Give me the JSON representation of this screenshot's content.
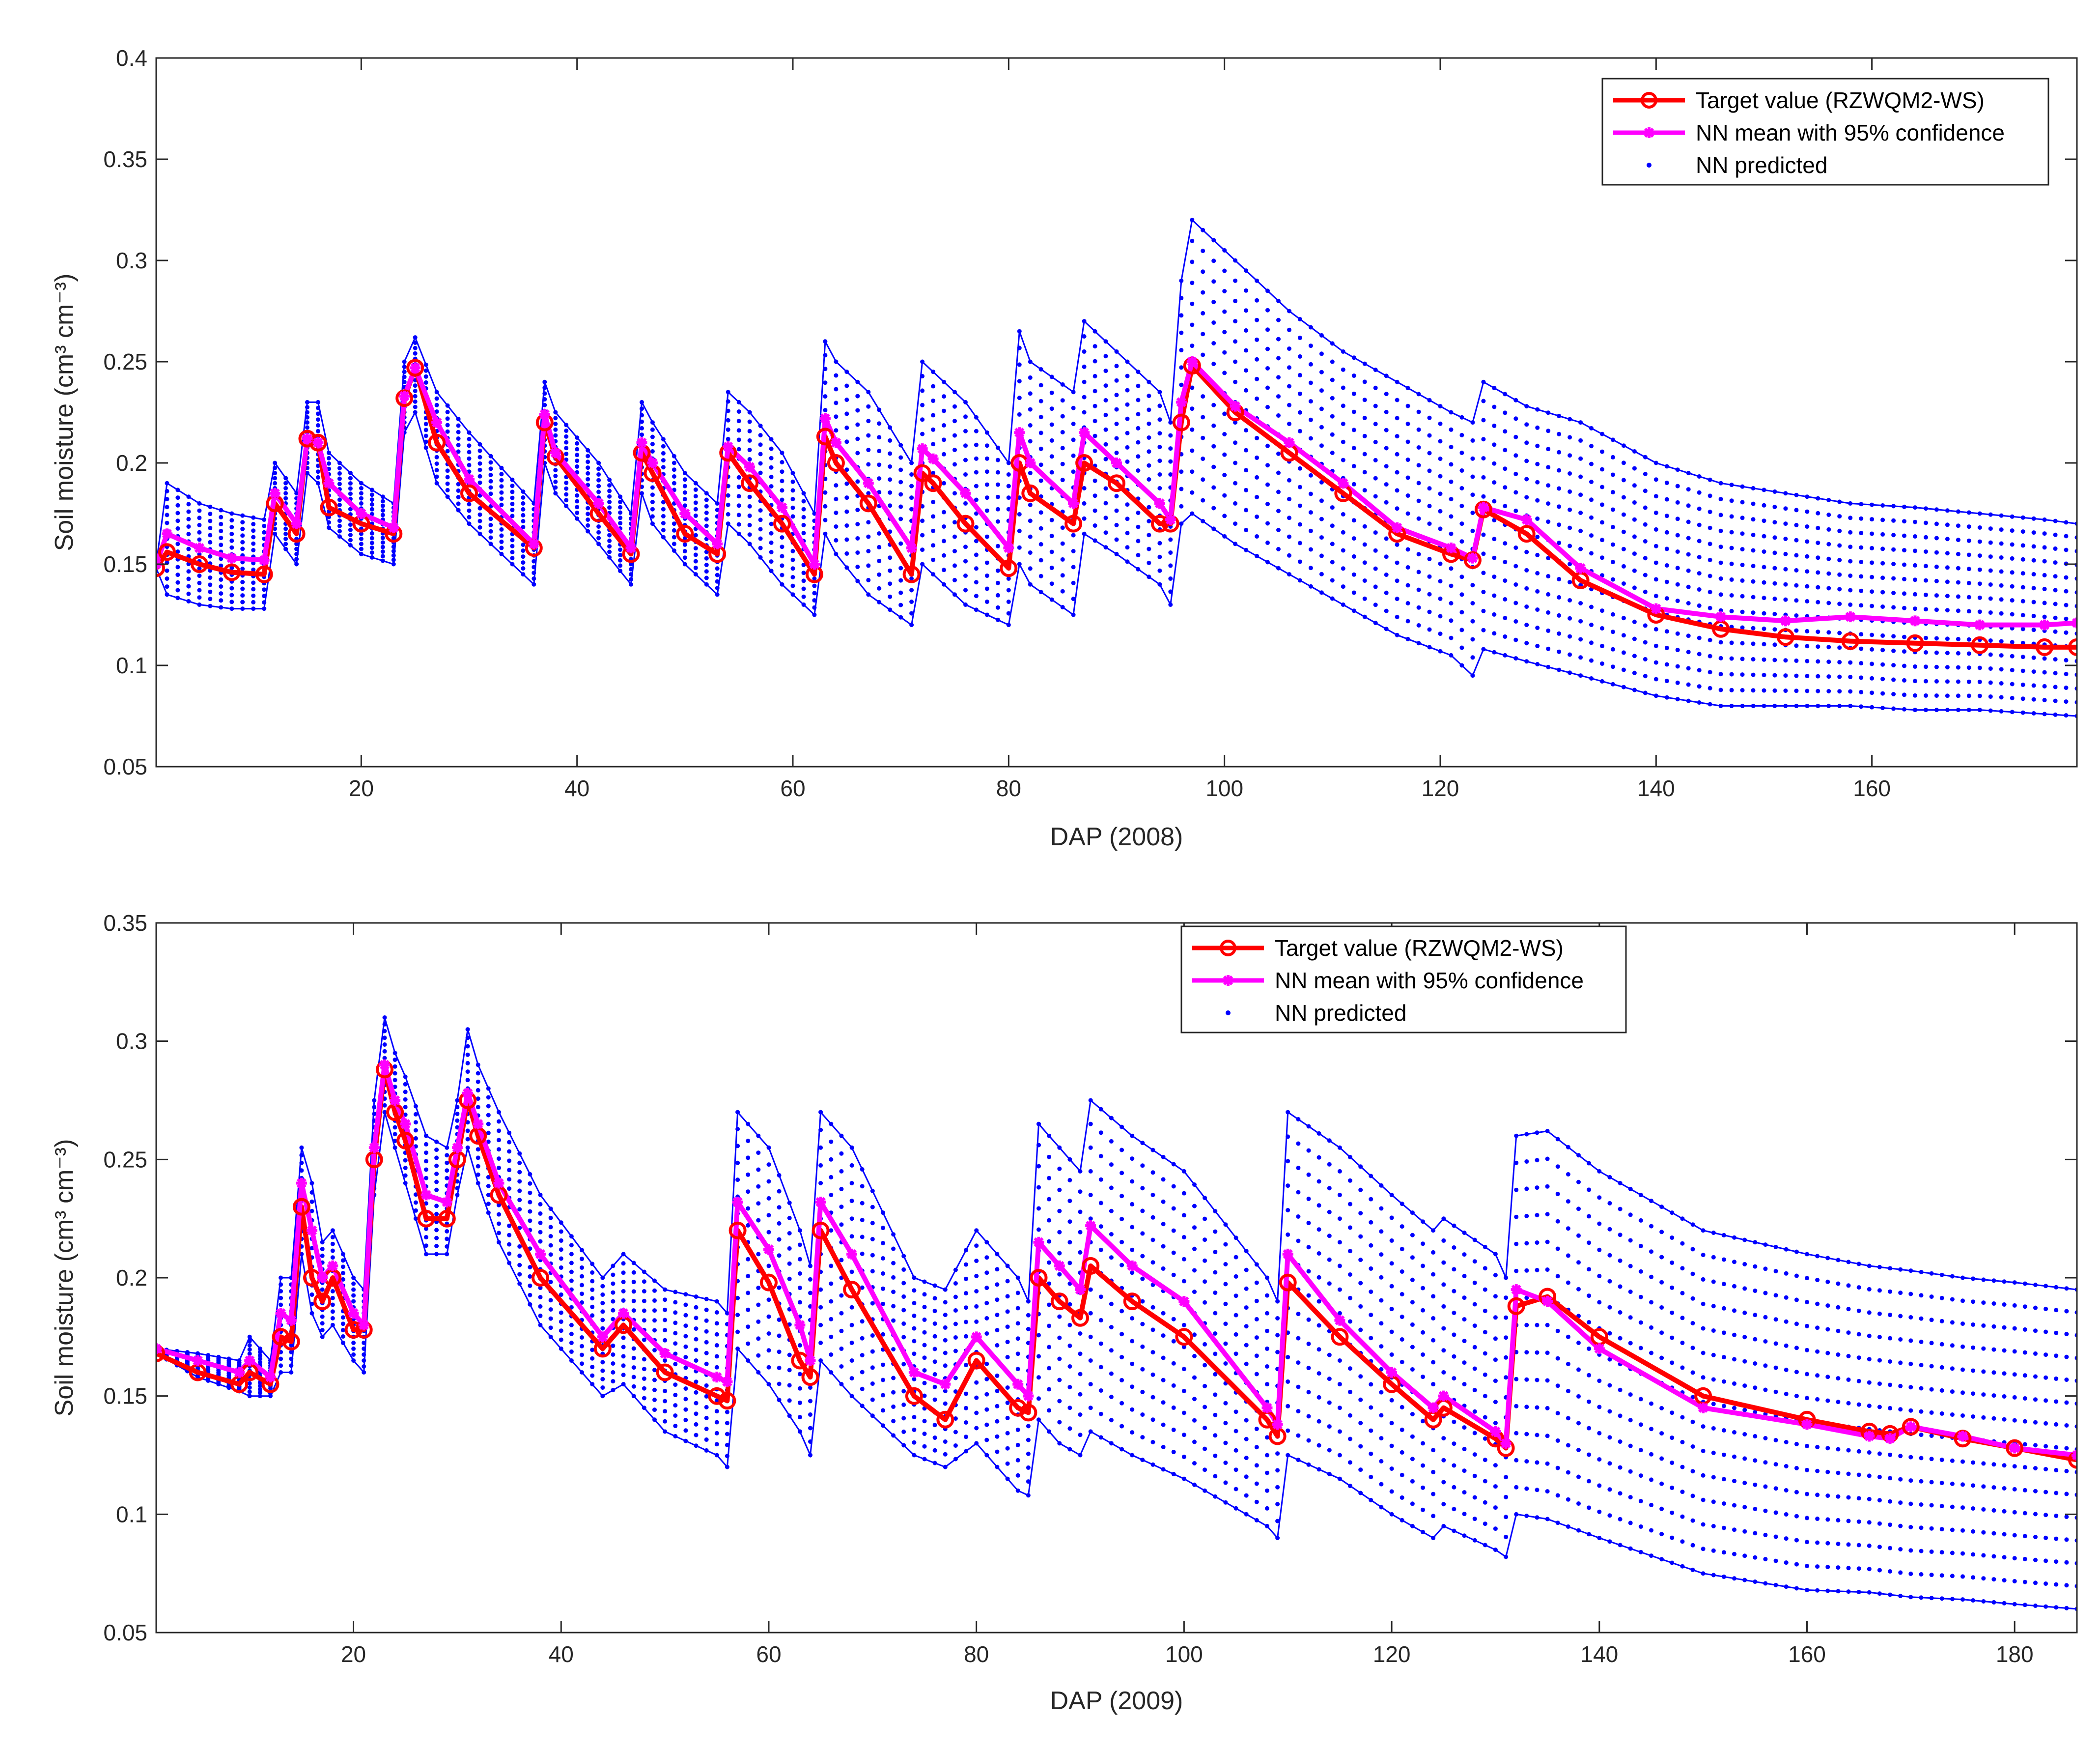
{
  "colors": {
    "target": "#ff0000",
    "mean": "#ff00ff",
    "predicted": "#0000ff",
    "axis": "#262626"
  },
  "legend_labels": {
    "target": "Target value (RZWQM2-WS)",
    "mean": "NN mean with 95% confidence",
    "predicted": "NN predicted"
  },
  "chart_data": [
    {
      "type": "line",
      "xlabel": "DAP (2008)",
      "ylabel": "Soil moisture (cm³ cm⁻³)",
      "xlim": [
        1,
        179
      ],
      "ylim": [
        0.05,
        0.4
      ],
      "xticks": [
        20,
        40,
        60,
        80,
        100,
        120,
        140,
        160
      ],
      "yticks": [
        0.05,
        0.1,
        0.15,
        0.2,
        0.25,
        0.3,
        0.35,
        0.4
      ],
      "grid": false,
      "legend_position": "top-right",
      "series": [
        {
          "name": "Target value (RZWQM2-WS)",
          "x": [
            1,
            2,
            5,
            8,
            11,
            12,
            14,
            15,
            16,
            17,
            20,
            23,
            24,
            25,
            27,
            30,
            36,
            37,
            38,
            42,
            45,
            46,
            47,
            50,
            53,
            54,
            56,
            59,
            62,
            63,
            64,
            67,
            71,
            72,
            73,
            76,
            80,
            81,
            82,
            86,
            87,
            90,
            94,
            95,
            96,
            97,
            101,
            106,
            111,
            116,
            121,
            123,
            124,
            128,
            133,
            140,
            146,
            152,
            158,
            164,
            170,
            176,
            179
          ],
          "y": [
            0.148,
            0.156,
            0.15,
            0.146,
            0.145,
            0.18,
            0.165,
            0.212,
            0.21,
            0.178,
            0.17,
            0.165,
            0.232,
            0.247,
            0.21,
            0.185,
            0.158,
            0.22,
            0.203,
            0.175,
            0.155,
            0.205,
            0.195,
            0.165,
            0.155,
            0.205,
            0.19,
            0.17,
            0.145,
            0.213,
            0.2,
            0.18,
            0.145,
            0.195,
            0.19,
            0.17,
            0.148,
            0.2,
            0.185,
            0.17,
            0.2,
            0.19,
            0.17,
            0.17,
            0.22,
            0.248,
            0.225,
            0.205,
            0.185,
            0.165,
            0.155,
            0.152,
            0.177,
            0.165,
            0.142,
            0.125,
            0.118,
            0.114,
            0.112,
            0.111,
            0.11,
            0.109,
            0.109
          ]
        },
        {
          "name": "NN mean with 95% confidence",
          "x": [
            1,
            2,
            5,
            8,
            11,
            12,
            14,
            15,
            16,
            17,
            20,
            23,
            24,
            25,
            27,
            30,
            36,
            37,
            38,
            42,
            45,
            46,
            47,
            50,
            53,
            54,
            56,
            59,
            62,
            63,
            64,
            67,
            71,
            72,
            73,
            76,
            80,
            81,
            82,
            86,
            87,
            90,
            94,
            95,
            96,
            97,
            101,
            106,
            111,
            116,
            121,
            123,
            124,
            128,
            133,
            140,
            146,
            152,
            158,
            164,
            170,
            176,
            179
          ],
          "y": [
            0.15,
            0.165,
            0.158,
            0.153,
            0.152,
            0.185,
            0.17,
            0.212,
            0.21,
            0.19,
            0.175,
            0.168,
            0.233,
            0.247,
            0.22,
            0.192,
            0.16,
            0.224,
            0.205,
            0.18,
            0.158,
            0.21,
            0.2,
            0.175,
            0.16,
            0.208,
            0.198,
            0.178,
            0.15,
            0.222,
            0.21,
            0.19,
            0.158,
            0.207,
            0.202,
            0.185,
            0.158,
            0.215,
            0.2,
            0.18,
            0.215,
            0.2,
            0.18,
            0.172,
            0.23,
            0.25,
            0.228,
            0.21,
            0.19,
            0.168,
            0.158,
            0.153,
            0.178,
            0.172,
            0.148,
            0.128,
            0.124,
            0.122,
            0.124,
            0.122,
            0.12,
            0.12,
            0.121
          ]
        },
        {
          "name": "NN predicted",
          "x": [
            1,
            2,
            5,
            8,
            11,
            12,
            14,
            15,
            16,
            17,
            20,
            23,
            24,
            25,
            27,
            30,
            36,
            37,
            38,
            42,
            45,
            46,
            47,
            50,
            53,
            54,
            56,
            59,
            62,
            63,
            64,
            67,
            71,
            72,
            73,
            76,
            80,
            81,
            82,
            86,
            87,
            90,
            94,
            95,
            96,
            97,
            101,
            106,
            111,
            116,
            121,
            123,
            124,
            128,
            133,
            140,
            146,
            152,
            158,
            164,
            170,
            176,
            179
          ],
          "lower": [
            0.148,
            0.135,
            0.13,
            0.128,
            0.128,
            0.165,
            0.15,
            0.195,
            0.19,
            0.168,
            0.155,
            0.15,
            0.215,
            0.225,
            0.19,
            0.17,
            0.14,
            0.2,
            0.185,
            0.16,
            0.14,
            0.185,
            0.17,
            0.15,
            0.135,
            0.17,
            0.16,
            0.14,
            0.125,
            0.165,
            0.155,
            0.135,
            0.12,
            0.15,
            0.145,
            0.13,
            0.12,
            0.15,
            0.14,
            0.125,
            0.165,
            0.155,
            0.14,
            0.13,
            0.17,
            0.175,
            0.16,
            0.145,
            0.13,
            0.115,
            0.105,
            0.095,
            0.108,
            0.102,
            0.095,
            0.085,
            0.08,
            0.08,
            0.08,
            0.078,
            0.078,
            0.076,
            0.075
          ],
          "upper": [
            0.15,
            0.19,
            0.18,
            0.175,
            0.172,
            0.2,
            0.185,
            0.23,
            0.23,
            0.205,
            0.19,
            0.18,
            0.25,
            0.262,
            0.235,
            0.215,
            0.18,
            0.24,
            0.225,
            0.2,
            0.175,
            0.23,
            0.22,
            0.195,
            0.18,
            0.235,
            0.225,
            0.205,
            0.175,
            0.26,
            0.25,
            0.235,
            0.2,
            0.25,
            0.245,
            0.23,
            0.2,
            0.265,
            0.25,
            0.235,
            0.27,
            0.255,
            0.235,
            0.22,
            0.29,
            0.32,
            0.3,
            0.275,
            0.255,
            0.24,
            0.225,
            0.22,
            0.24,
            0.228,
            0.22,
            0.2,
            0.19,
            0.185,
            0.18,
            0.178,
            0.175,
            0.172,
            0.17
          ]
        }
      ]
    },
    {
      "type": "line",
      "xlabel": "DAP (2009)",
      "ylabel": "Soil moisture (cm³ cm⁻³)",
      "xlim": [
        1,
        186
      ],
      "ylim": [
        0.05,
        0.35
      ],
      "xticks": [
        20,
        40,
        60,
        80,
        100,
        120,
        140,
        160,
        180
      ],
      "yticks": [
        0.05,
        0.1,
        0.15,
        0.2,
        0.25,
        0.3,
        0.35
      ],
      "grid": false,
      "legend_position": "top-center",
      "series": [
        {
          "name": "Target value (RZWQM2-WS)",
          "x": [
            1,
            5,
            9,
            10,
            12,
            13,
            14,
            15,
            16,
            17,
            18,
            20,
            21,
            22,
            23,
            24,
            25,
            27,
            29,
            30,
            31,
            32,
            34,
            38,
            44,
            46,
            50,
            55,
            56,
            57,
            60,
            63,
            64,
            65,
            68,
            74,
            77,
            80,
            84,
            85,
            86,
            88,
            90,
            91,
            95,
            100,
            108,
            109,
            110,
            115,
            120,
            124,
            125,
            130,
            131,
            132,
            135,
            140,
            150,
            160,
            166,
            168,
            170,
            175,
            180,
            186
          ],
          "y": [
            0.168,
            0.16,
            0.155,
            0.16,
            0.155,
            0.175,
            0.173,
            0.23,
            0.2,
            0.19,
            0.2,
            0.178,
            0.178,
            0.25,
            0.288,
            0.27,
            0.258,
            0.225,
            0.225,
            0.25,
            0.275,
            0.26,
            0.235,
            0.2,
            0.17,
            0.18,
            0.16,
            0.15,
            0.148,
            0.22,
            0.198,
            0.165,
            0.158,
            0.22,
            0.195,
            0.15,
            0.14,
            0.165,
            0.145,
            0.143,
            0.2,
            0.19,
            0.183,
            0.205,
            0.19,
            0.175,
            0.14,
            0.133,
            0.198,
            0.175,
            0.155,
            0.14,
            0.145,
            0.132,
            0.128,
            0.188,
            0.192,
            0.175,
            0.15,
            0.14,
            0.135,
            0.134,
            0.137,
            0.132,
            0.128,
            0.123
          ]
        },
        {
          "name": "NN mean with 95% confidence",
          "x": [
            1,
            5,
            9,
            10,
            12,
            13,
            14,
            15,
            16,
            17,
            18,
            20,
            21,
            22,
            23,
            24,
            25,
            27,
            29,
            30,
            31,
            32,
            34,
            38,
            44,
            46,
            50,
            55,
            56,
            57,
            60,
            63,
            64,
            65,
            68,
            74,
            77,
            80,
            84,
            85,
            86,
            88,
            90,
            91,
            95,
            100,
            108,
            109,
            110,
            115,
            120,
            124,
            125,
            130,
            131,
            132,
            135,
            140,
            150,
            160,
            166,
            168,
            170,
            175,
            180,
            186
          ],
          "y": [
            0.17,
            0.165,
            0.16,
            0.165,
            0.158,
            0.185,
            0.182,
            0.24,
            0.22,
            0.2,
            0.205,
            0.185,
            0.18,
            0.255,
            0.29,
            0.275,
            0.265,
            0.235,
            0.232,
            0.255,
            0.278,
            0.265,
            0.24,
            0.21,
            0.175,
            0.185,
            0.168,
            0.158,
            0.156,
            0.232,
            0.212,
            0.18,
            0.165,
            0.232,
            0.21,
            0.16,
            0.155,
            0.175,
            0.155,
            0.15,
            0.215,
            0.205,
            0.195,
            0.222,
            0.205,
            0.19,
            0.145,
            0.138,
            0.21,
            0.182,
            0.16,
            0.145,
            0.15,
            0.135,
            0.13,
            0.195,
            0.19,
            0.17,
            0.145,
            0.138,
            0.133,
            0.132,
            0.137,
            0.133,
            0.128,
            0.125
          ]
        },
        {
          "name": "NN predicted",
          "x": [
            1,
            5,
            9,
            10,
            12,
            13,
            14,
            15,
            16,
            17,
            18,
            20,
            21,
            22,
            23,
            24,
            25,
            27,
            29,
            30,
            31,
            32,
            34,
            38,
            44,
            46,
            50,
            55,
            56,
            57,
            60,
            63,
            64,
            65,
            68,
            74,
            77,
            80,
            84,
            85,
            86,
            88,
            90,
            91,
            95,
            100,
            108,
            109,
            110,
            115,
            120,
            124,
            125,
            130,
            131,
            132,
            135,
            140,
            150,
            160,
            166,
            168,
            170,
            175,
            180,
            186
          ],
          "lower": [
            0.168,
            0.158,
            0.152,
            0.15,
            0.15,
            0.16,
            0.16,
            0.21,
            0.185,
            0.175,
            0.18,
            0.165,
            0.16,
            0.235,
            0.27,
            0.255,
            0.24,
            0.21,
            0.21,
            0.235,
            0.255,
            0.24,
            0.215,
            0.18,
            0.15,
            0.155,
            0.135,
            0.125,
            0.12,
            0.17,
            0.155,
            0.135,
            0.125,
            0.165,
            0.15,
            0.125,
            0.12,
            0.13,
            0.11,
            0.108,
            0.14,
            0.13,
            0.125,
            0.135,
            0.125,
            0.115,
            0.095,
            0.09,
            0.125,
            0.115,
            0.1,
            0.09,
            0.095,
            0.085,
            0.082,
            0.1,
            0.098,
            0.09,
            0.075,
            0.068,
            0.067,
            0.066,
            0.065,
            0.064,
            0.062,
            0.06
          ],
          "upper": [
            0.17,
            0.168,
            0.165,
            0.175,
            0.165,
            0.2,
            0.2,
            0.255,
            0.24,
            0.215,
            0.22,
            0.2,
            0.195,
            0.275,
            0.31,
            0.295,
            0.285,
            0.26,
            0.255,
            0.275,
            0.305,
            0.29,
            0.27,
            0.235,
            0.2,
            0.21,
            0.195,
            0.19,
            0.185,
            0.27,
            0.255,
            0.22,
            0.205,
            0.27,
            0.255,
            0.2,
            0.195,
            0.22,
            0.2,
            0.19,
            0.265,
            0.255,
            0.245,
            0.275,
            0.26,
            0.245,
            0.2,
            0.19,
            0.27,
            0.255,
            0.235,
            0.22,
            0.225,
            0.21,
            0.2,
            0.26,
            0.262,
            0.245,
            0.22,
            0.21,
            0.205,
            0.204,
            0.203,
            0.2,
            0.198,
            0.195
          ]
        }
      ]
    }
  ]
}
